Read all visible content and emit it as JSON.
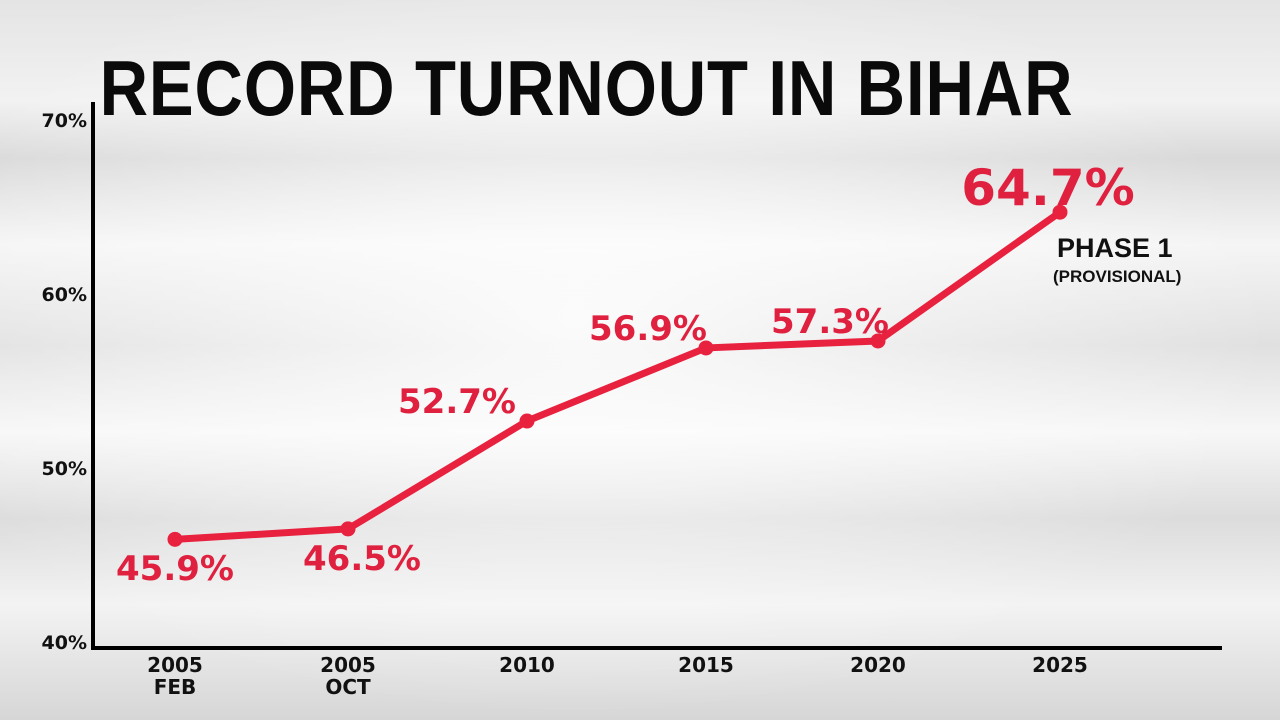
{
  "chart_data": {
    "type": "line",
    "title": "RECORD TURNOUT IN BIHAR",
    "categories": [
      [
        "2005",
        "FEB"
      ],
      [
        "2005",
        "OCT"
      ],
      [
        "2010"
      ],
      [
        "2015"
      ],
      [
        "2020"
      ],
      [
        "2025"
      ]
    ],
    "values": [
      45.9,
      46.5,
      52.7,
      56.9,
      57.3,
      64.7
    ],
    "data_labels": [
      "45.9%",
      "46.5%",
      "52.7%",
      "56.9%",
      "57.3%",
      "64.7%"
    ],
    "ylim": [
      40,
      70
    ],
    "yticks": [
      40,
      50,
      60,
      70
    ],
    "ytick_labels": [
      "40%",
      "50%",
      "60%",
      "70%"
    ],
    "annotation": {
      "line1": "PHASE 1",
      "line2": "(PROVISIONAL)"
    },
    "grid": false,
    "colors": {
      "line": "#e8213f",
      "axis": "#000000"
    }
  }
}
